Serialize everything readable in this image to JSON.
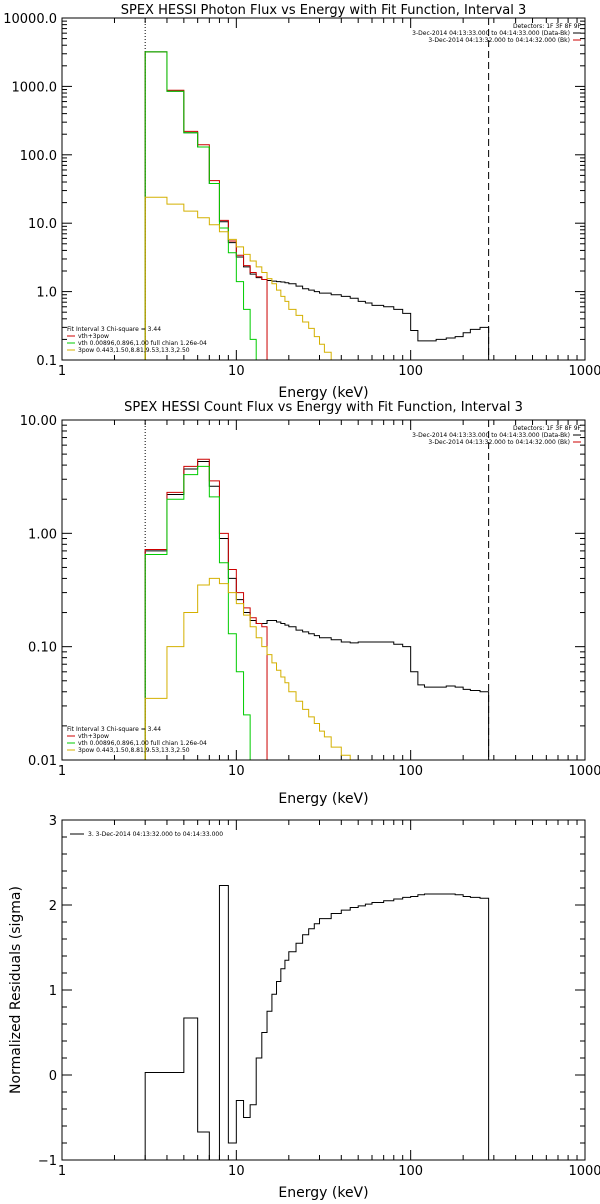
{
  "chart_data": [
    {
      "type": "line",
      "title": "SPEX HESSI Photon Flux vs Energy with Fit Function, Interval 3",
      "xlabel": "Energy (keV)",
      "ylabel": "",
      "xscale": "log",
      "yscale": "log",
      "xlim": [
        1,
        1000
      ],
      "ylim": [
        0.1,
        10000
      ],
      "x_ticks": [
        {
          "value": 1,
          "label": "1"
        },
        {
          "value": 10,
          "label": "10"
        },
        {
          "value": 100,
          "label": "100"
        },
        {
          "value": 1000,
          "label": "1000"
        }
      ],
      "y_ticks": [
        {
          "value": 0.1,
          "label": "0.1"
        },
        {
          "value": 1,
          "label": "1.0"
        },
        {
          "value": 10,
          "label": "10.0"
        },
        {
          "value": 100,
          "label": "100.0"
        },
        {
          "value": 1000,
          "label": "1000.0"
        },
        {
          "value": 10000,
          "label": "10000.0"
        }
      ],
      "legend_top_right": {
        "header": "Detectors: 1F 3F 8F 9F",
        "entries": [
          {
            "text": "3-Dec-2014 04:13:33.000 to 04:14:33.000 (Data-Bk)",
            "color": "#000000"
          },
          {
            "text": "3-Dec-2014 04:13:32.000 to 04:14:32.000 (Bk)",
            "color": "#cc0000"
          }
        ]
      },
      "legend_bottom_left": {
        "header": "Fit Interval 3   Chi-square = 3.44",
        "entries": [
          {
            "text": "vth+3pow",
            "color": "#cc0000"
          },
          {
            "text": "vth 0.00896,0.896,1.00  full chian 1.26e-04",
            "color": "#00cc00"
          },
          {
            "text": "3pow 0.443,1.50,8.81,9.53,13.3,2.50",
            "color": "#d4b000"
          }
        ]
      },
      "vlines": [
        {
          "x": 3,
          "style": "dotted"
        },
        {
          "x": 280,
          "style": "dashed"
        }
      ],
      "series": [
        {
          "color": "#000000",
          "width": 1,
          "edges": [
            3,
            4,
            5,
            6,
            7,
            8,
            9,
            10,
            11,
            12,
            13,
            14,
            15,
            16,
            17,
            18,
            19,
            20,
            22,
            24,
            26,
            28,
            30,
            35,
            40,
            45,
            50,
            55,
            60,
            70,
            80,
            90,
            100,
            110,
            120,
            140,
            160,
            180,
            200,
            220,
            250,
            280
          ],
          "values": [
            3200,
            850,
            210,
            130,
            38,
            10.5,
            5.2,
            3.2,
            2.3,
            1.8,
            1.6,
            1.5,
            1.45,
            1.42,
            1.4,
            1.38,
            1.35,
            1.3,
            1.2,
            1.1,
            1.05,
            1.0,
            0.95,
            0.9,
            0.85,
            0.8,
            0.72,
            0.68,
            0.63,
            0.6,
            0.55,
            0.48,
            0.27,
            0.19,
            0.19,
            0.2,
            0.21,
            0.22,
            0.25,
            0.28,
            0.3
          ]
        },
        {
          "color": "#cc0000",
          "width": 1,
          "edges": [
            3,
            4,
            5,
            6,
            7,
            8,
            9,
            10,
            11,
            12,
            13,
            14,
            15
          ],
          "values": [
            3200,
            880,
            220,
            140,
            42,
            11,
            5.5,
            3.4,
            2.4,
            1.9,
            1.65,
            1.5
          ]
        },
        {
          "color": "#00cc00",
          "width": 1,
          "edges": [
            3,
            4,
            5,
            6,
            7,
            8,
            9,
            10,
            11,
            12,
            13
          ],
          "values": [
            3200,
            850,
            210,
            130,
            38,
            8.5,
            3.7,
            1.4,
            0.55,
            0.2
          ]
        },
        {
          "color": "#d4b000",
          "width": 1,
          "edges": [
            3,
            4,
            5,
            6,
            7,
            8,
            9,
            10,
            11,
            12,
            13,
            14,
            15,
            16,
            17,
            18,
            19,
            20,
            22,
            24,
            26,
            28,
            30,
            32,
            35,
            40
          ],
          "values": [
            24,
            19,
            15,
            12,
            9.5,
            7.5,
            5.8,
            4.5,
            3.5,
            2.8,
            2.3,
            1.9,
            1.55,
            1.3,
            1.05,
            0.85,
            0.72,
            0.55,
            0.45,
            0.36,
            0.29,
            0.22,
            0.17,
            0.13,
            0.1
          ]
        }
      ]
    },
    {
      "type": "line",
      "title": "SPEX HESSI Count Flux vs Energy with Fit Function, Interval 3",
      "xlabel": "Energy (keV)",
      "ylabel": "",
      "xscale": "log",
      "yscale": "log",
      "xlim": [
        1,
        1000
      ],
      "ylim": [
        0.01,
        10
      ],
      "x_ticks": [
        {
          "value": 1,
          "label": "1"
        },
        {
          "value": 10,
          "label": "10"
        },
        {
          "value": 100,
          "label": "100"
        },
        {
          "value": 1000,
          "label": "1000"
        }
      ],
      "y_ticks": [
        {
          "value": 0.01,
          "label": "0.01"
        },
        {
          "value": 0.1,
          "label": "0.10"
        },
        {
          "value": 1,
          "label": "1.00"
        },
        {
          "value": 10,
          "label": "10.00"
        }
      ],
      "legend_top_right": {
        "header": "Detectors: 1F 3F 8F 9F",
        "entries": [
          {
            "text": "3-Dec-2014 04:13:33.000 to 04:14:33.000 (Data-Bk)",
            "color": "#000000"
          },
          {
            "text": "3-Dec-2014 04:13:32.000 to 04:14:32.000 (Bk)",
            "color": "#cc0000"
          }
        ]
      },
      "legend_bottom_left": {
        "header": "Fit Interval 3   Chi-square = 3.44",
        "entries": [
          {
            "text": "vth+3pow",
            "color": "#cc0000"
          },
          {
            "text": "vth 0.00896,0.896,1.00  full chian 1.26e-04",
            "color": "#00cc00"
          },
          {
            "text": "3pow 0.443,1.50,8.81,9.53,13.3,2.50",
            "color": "#d4b000"
          }
        ]
      },
      "vlines": [
        {
          "x": 3,
          "style": "dotted"
        },
        {
          "x": 280,
          "style": "dashed"
        }
      ],
      "series": [
        {
          "color": "#000000",
          "width": 1,
          "edges": [
            3,
            4,
            5,
            6,
            7,
            8,
            9,
            10,
            11,
            12,
            13,
            14,
            15,
            16,
            17,
            18,
            19,
            20,
            22,
            24,
            26,
            28,
            30,
            35,
            40,
            45,
            50,
            55,
            60,
            70,
            80,
            90,
            100,
            110,
            120,
            140,
            160,
            180,
            200,
            220,
            250,
            280
          ],
          "values": [
            0.7,
            2.2,
            3.7,
            4.3,
            2.6,
            0.9,
            0.4,
            0.26,
            0.2,
            0.17,
            0.16,
            0.16,
            0.17,
            0.17,
            0.165,
            0.16,
            0.155,
            0.15,
            0.14,
            0.135,
            0.13,
            0.125,
            0.12,
            0.115,
            0.11,
            0.108,
            0.11,
            0.11,
            0.11,
            0.11,
            0.105,
            0.1,
            0.06,
            0.046,
            0.044,
            0.044,
            0.045,
            0.044,
            0.042,
            0.041,
            0.04
          ]
        },
        {
          "color": "#cc0000",
          "width": 1,
          "edges": [
            3,
            4,
            5,
            6,
            7,
            8,
            9,
            10,
            11,
            12,
            13,
            14,
            15
          ],
          "values": [
            0.72,
            2.3,
            3.9,
            4.5,
            2.9,
            1.0,
            0.48,
            0.3,
            0.22,
            0.18,
            0.16,
            0.15
          ]
        },
        {
          "color": "#00cc00",
          "width": 1,
          "edges": [
            3,
            4,
            5,
            6,
            7,
            8,
            9,
            10,
            11,
            12,
            13
          ],
          "values": [
            0.65,
            2.0,
            3.3,
            3.9,
            2.1,
            0.55,
            0.13,
            0.06,
            0.025,
            0.008
          ]
        },
        {
          "color": "#d4b000",
          "width": 1,
          "edges": [
            3,
            4,
            5,
            6,
            7,
            8,
            9,
            10,
            11,
            12,
            13,
            14,
            15,
            16,
            17,
            18,
            19,
            20,
            22,
            24,
            26,
            28,
            30,
            32,
            35,
            40,
            45,
            50
          ],
          "values": [
            0.035,
            0.1,
            0.2,
            0.35,
            0.4,
            0.36,
            0.3,
            0.24,
            0.19,
            0.15,
            0.12,
            0.1,
            0.085,
            0.072,
            0.062,
            0.054,
            0.048,
            0.04,
            0.033,
            0.028,
            0.024,
            0.021,
            0.018,
            0.016,
            0.013,
            0.011,
            0.009
          ]
        }
      ]
    },
    {
      "type": "line",
      "title": "",
      "xlabel": "Energy (keV)",
      "ylabel": "Normalized Residuals (sigma)",
      "xscale": "log",
      "yscale": "linear",
      "xlim": [
        1,
        1000
      ],
      "ylim": [
        -1,
        3
      ],
      "x_ticks": [
        {
          "value": 1,
          "label": "1"
        },
        {
          "value": 10,
          "label": "10"
        },
        {
          "value": 100,
          "label": "100"
        },
        {
          "value": 1000,
          "label": "1000"
        }
      ],
      "y_ticks": [
        {
          "value": -1,
          "label": "−1"
        },
        {
          "value": 0,
          "label": "0"
        },
        {
          "value": 1,
          "label": "1"
        },
        {
          "value": 2,
          "label": "2"
        },
        {
          "value": 3,
          "label": "3"
        }
      ],
      "legend_top_left": {
        "entries": [
          {
            "text": "3.  3-Dec-2014 04:13:32.000 to 04:14:33.000",
            "color": "#000000"
          }
        ]
      },
      "series": [
        {
          "color": "#000000",
          "width": 1,
          "edges": [
            3,
            4,
            5,
            6,
            7,
            8,
            9,
            10,
            11,
            12,
            13,
            14,
            15,
            16,
            17,
            18,
            19,
            20,
            22,
            24,
            26,
            28,
            30,
            35,
            40,
            45,
            50,
            55,
            60,
            70,
            80,
            90,
            100,
            110,
            120,
            140,
            160,
            180,
            200,
            220,
            250,
            280
          ],
          "values": [
            0.03,
            0.03,
            0.67,
            -0.67,
            -1.1,
            2.23,
            -0.8,
            -0.3,
            -0.5,
            -0.35,
            0.2,
            0.5,
            0.75,
            0.95,
            1.1,
            1.25,
            1.35,
            1.45,
            1.55,
            1.65,
            1.72,
            1.78,
            1.84,
            1.9,
            1.94,
            1.97,
            1.99,
            2.01,
            2.03,
            2.05,
            2.07,
            2.09,
            2.1,
            2.12,
            2.13,
            2.13,
            2.13,
            2.12,
            2.1,
            2.09,
            2.08
          ],
          "dropToAxisAtEnd": true
        }
      ]
    }
  ]
}
